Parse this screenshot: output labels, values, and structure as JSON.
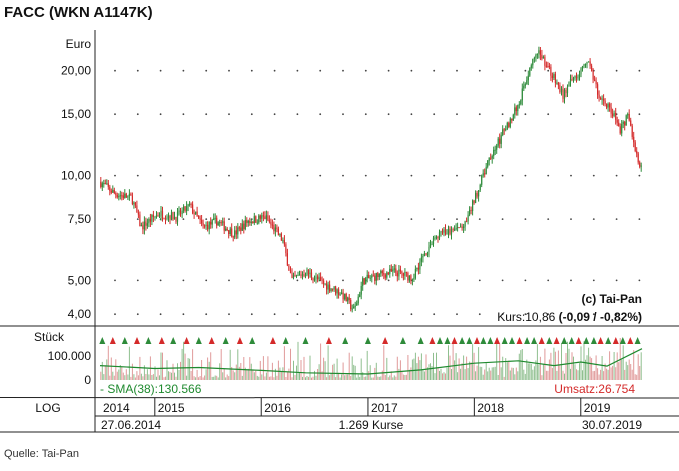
{
  "title": "FACC (WKN A1147K)",
  "source": "Quelle: Tai-Pan",
  "chart_data": {
    "type": "candlestick",
    "y_scale": "log",
    "price_axis": {
      "unit_label": "Euro",
      "ticks": [
        4.0,
        5.0,
        7.5,
        10.0,
        15.0,
        20.0
      ],
      "tick_labels": [
        "4,00",
        "5,00",
        "7,50",
        "10,00",
        "15,00",
        "20,00"
      ],
      "range": [
        3.7,
        24.5
      ]
    },
    "volume_axis": {
      "unit_label": "Stück",
      "ticks": [
        0,
        100000
      ],
      "tick_labels": [
        "0",
        "100.000"
      ],
      "range": [
        0,
        200000
      ]
    },
    "x_axis": {
      "start": "2014-06-27",
      "end": "2019-07-30",
      "year_labels": [
        "2014",
        "2015",
        "2016",
        "2017",
        "2018",
        "2019"
      ],
      "year_starts": [
        "2014-06-27",
        "2015-01-01",
        "2016-01-01",
        "2017-01-01",
        "2018-01-01",
        "2019-01-01"
      ]
    },
    "price_series": [
      [
        "2014-06-27",
        9.6
      ],
      [
        "2014-08-15",
        8.9
      ],
      [
        "2014-10-15",
        8.6
      ],
      [
        "2014-11-15",
        7.1
      ],
      [
        "2015-01-15",
        7.8
      ],
      [
        "2015-03-15",
        7.6
      ],
      [
        "2015-05-01",
        8.2
      ],
      [
        "2015-06-15",
        7.1
      ],
      [
        "2015-08-01",
        7.4
      ],
      [
        "2015-10-01",
        6.8
      ],
      [
        "2015-11-15",
        7.4
      ],
      [
        "2016-01-15",
        7.6
      ],
      [
        "2016-03-15",
        6.5
      ],
      [
        "2016-04-15",
        5.0
      ],
      [
        "2016-06-01",
        5.3
      ],
      [
        "2016-08-01",
        4.9
      ],
      [
        "2016-10-01",
        4.6
      ],
      [
        "2016-11-15",
        4.1
      ],
      [
        "2016-12-15",
        5.0
      ],
      [
        "2017-02-15",
        5.2
      ],
      [
        "2017-04-01",
        5.3
      ],
      [
        "2017-06-01",
        5.1
      ],
      [
        "2017-07-15",
        6.0
      ],
      [
        "2017-09-01",
        6.8
      ],
      [
        "2017-10-15",
        6.9
      ],
      [
        "2017-12-01",
        7.2
      ],
      [
        "2018-01-15",
        9.2
      ],
      [
        "2018-03-01",
        11.5
      ],
      [
        "2018-04-15",
        13.5
      ],
      [
        "2018-06-01",
        16.0
      ],
      [
        "2018-07-15",
        21.0
      ],
      [
        "2018-08-15",
        22.5
      ],
      [
        "2018-10-01",
        19.0
      ],
      [
        "2018-11-01",
        17.0
      ],
      [
        "2018-12-15",
        19.5
      ],
      [
        "2019-02-01",
        21.0
      ],
      [
        "2019-03-01",
        17.0
      ],
      [
        "2019-04-15",
        15.5
      ],
      [
        "2019-05-15",
        13.5
      ],
      [
        "2019-06-15",
        15.0
      ],
      [
        "2019-07-01",
        12.5
      ],
      [
        "2019-07-20",
        10.5
      ],
      [
        "2019-07-30",
        10.86
      ]
    ],
    "sma_series": [
      [
        "2014-06-27",
        60000
      ],
      [
        "2015-01-01",
        48000
      ],
      [
        "2015-06-01",
        52000
      ],
      [
        "2016-01-01",
        40000
      ],
      [
        "2016-06-01",
        30000
      ],
      [
        "2017-01-01",
        25000
      ],
      [
        "2017-07-01",
        42000
      ],
      [
        "2018-01-01",
        70000
      ],
      [
        "2018-06-01",
        80000
      ],
      [
        "2018-10-01",
        60000
      ],
      [
        "2019-01-01",
        75000
      ],
      [
        "2019-04-01",
        58000
      ],
      [
        "2019-07-30",
        130566
      ]
    ],
    "signal_markers": [
      [
        "2014-07-05",
        "up"
      ],
      [
        "2014-08-10",
        "down"
      ],
      [
        "2014-09-20",
        "up"
      ],
      [
        "2014-11-01",
        "down"
      ],
      [
        "2014-12-10",
        "up"
      ],
      [
        "2015-01-25",
        "down"
      ],
      [
        "2015-03-05",
        "up"
      ],
      [
        "2015-04-20",
        "down"
      ],
      [
        "2015-06-01",
        "up"
      ],
      [
        "2015-07-15",
        "down"
      ],
      [
        "2015-09-01",
        "up"
      ],
      [
        "2015-10-20",
        "down"
      ],
      [
        "2015-12-01",
        "up"
      ],
      [
        "2016-02-10",
        "down"
      ],
      [
        "2016-03-25",
        "up"
      ],
      [
        "2016-06-01",
        "up"
      ],
      [
        "2016-08-20",
        "down"
      ],
      [
        "2016-10-15",
        "up"
      ],
      [
        "2017-01-01",
        "up"
      ],
      [
        "2017-03-01",
        "down"
      ],
      [
        "2017-05-01",
        "up"
      ],
      [
        "2017-07-01",
        "up"
      ],
      [
        "2017-08-10",
        "down"
      ],
      [
        "2017-09-05",
        "up"
      ],
      [
        "2017-10-01",
        "up"
      ],
      [
        "2017-10-25",
        "down"
      ],
      [
        "2017-11-20",
        "up"
      ],
      [
        "2017-12-15",
        "up"
      ],
      [
        "2018-01-10",
        "down"
      ],
      [
        "2018-02-01",
        "up"
      ],
      [
        "2018-02-25",
        "up"
      ],
      [
        "2018-03-20",
        "down"
      ],
      [
        "2018-04-15",
        "up"
      ],
      [
        "2018-05-10",
        "up"
      ],
      [
        "2018-06-05",
        "down"
      ],
      [
        "2018-07-01",
        "up"
      ],
      [
        "2018-07-25",
        "up"
      ],
      [
        "2018-08-20",
        "down"
      ],
      [
        "2018-09-15",
        "up"
      ],
      [
        "2018-10-10",
        "down"
      ],
      [
        "2018-11-05",
        "up"
      ],
      [
        "2018-12-01",
        "up"
      ],
      [
        "2018-12-25",
        "down"
      ],
      [
        "2019-01-20",
        "up"
      ],
      [
        "2019-02-15",
        "up"
      ],
      [
        "2019-03-10",
        "down"
      ],
      [
        "2019-04-05",
        "up"
      ],
      [
        "2019-05-01",
        "down"
      ],
      [
        "2019-05-25",
        "up"
      ],
      [
        "2019-06-20",
        "down"
      ],
      [
        "2019-07-15",
        "up"
      ]
    ],
    "copyright": "(c) Tai-Pan",
    "kurs_text": "Kurs:10,86",
    "kurs_change": "(-0,09 / -0,82%)",
    "sma_label": "- SMA(38):130.566",
    "umsatz_label": "Umsatz:26.754",
    "scale_label": "LOG",
    "start_date_label": "27.06.2014",
    "count_label": "1.269 Kurse",
    "end_date_label": "30.07.2019",
    "colors": {
      "up": "#2e8b3a",
      "down": "#d42a2a",
      "sma": "#1f8a2f",
      "volume_up": "#8fbf8f",
      "volume_down": "#e09a9a",
      "umsatz": "#d42a2a"
    }
  }
}
